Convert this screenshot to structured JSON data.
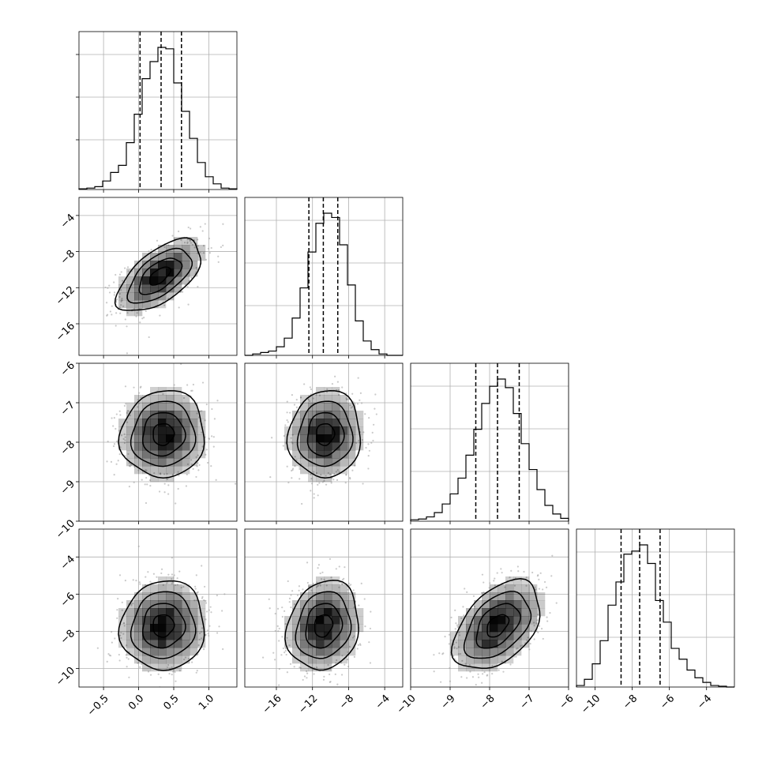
{
  "chart_data": {
    "type": "corner",
    "n_params": 4,
    "grid": true,
    "ranges": [
      [
        -0.85,
        1.4
      ],
      [
        -19.5,
        -2.0
      ],
      [
        -10.0,
        -6.0
      ],
      [
        -11.0,
        -2.5
      ]
    ],
    "ticks": [
      [
        -0.5,
        0.0,
        0.5,
        1.0
      ],
      [
        -16,
        -12,
        -8,
        -4
      ],
      [
        -10,
        -9,
        -8,
        -7,
        -6
      ],
      [
        -10,
        -8,
        -6,
        -4
      ]
    ],
    "tick_labels": [
      [
        "−0.5",
        "0.0",
        "0.5",
        "1.0"
      ],
      [
        "−16",
        "−12",
        "−8",
        "−4"
      ],
      [
        "−10",
        "−9",
        "−8",
        "−7",
        "−6"
      ],
      [
        "−10",
        "−8",
        "−6",
        "−4"
      ]
    ],
    "marginals": [
      {
        "param": 0,
        "quantiles": [
          0.02,
          0.32,
          0.61
        ],
        "bin_start": -0.85,
        "bin_width": 0.1125,
        "counts": [
          0.5,
          1,
          2,
          6,
          12,
          17,
          33,
          53,
          78,
          90,
          100,
          99,
          75,
          55,
          36,
          19,
          9,
          4,
          1,
          0.5
        ]
      },
      {
        "param": 1,
        "quantiles": [
          -12.4,
          -10.8,
          -9.2
        ],
        "bin_start": -19.5,
        "bin_width": 0.875,
        "counts": [
          0,
          1,
          2,
          3,
          6,
          12,
          26,
          47,
          72,
          92,
          99,
          96,
          77,
          49,
          24,
          10,
          4,
          1,
          0,
          0
        ]
      },
      {
        "param": 2,
        "quantiles": [
          -8.35,
          -7.8,
          -7.25
        ],
        "bin_start": -10.0,
        "bin_width": 0.2,
        "counts": [
          1,
          1.5,
          3,
          6,
          12,
          19,
          30,
          46,
          64,
          82,
          94,
          99,
          93,
          75,
          54,
          36,
          22,
          11,
          5,
          2
        ]
      },
      {
        "param": 3,
        "quantiles": [
          -8.6,
          -7.6,
          -6.5
        ],
        "bin_start": -11.0,
        "bin_width": 0.425,
        "counts": [
          1,
          5,
          15,
          30,
          53,
          68,
          86,
          88,
          92,
          80,
          56,
          42,
          25,
          18,
          11,
          6,
          3,
          1,
          0.5,
          0
        ]
      }
    ],
    "joint": [
      {
        "x_param": 0,
        "y_param": 1,
        "mean": [
          0.3,
          -10.7
        ],
        "sd": [
          0.3,
          2.0
        ],
        "rho": 0.6
      },
      {
        "x_param": 0,
        "y_param": 2,
        "mean": [
          0.35,
          -7.8
        ],
        "sd": [
          0.3,
          0.55
        ],
        "rho": 0.05
      },
      {
        "x_param": 1,
        "y_param": 2,
        "mean": [
          -10.6,
          -7.8
        ],
        "sd": [
          2.0,
          0.55
        ],
        "rho": 0.05
      },
      {
        "x_param": 0,
        "y_param": 3,
        "mean": [
          0.35,
          -7.7
        ],
        "sd": [
          0.3,
          1.2
        ],
        "rho": 0.05
      },
      {
        "x_param": 1,
        "y_param": 3,
        "mean": [
          -10.8,
          -7.7
        ],
        "sd": [
          2.0,
          1.2
        ],
        "rho": 0.15
      },
      {
        "x_param": 2,
        "y_param": 3,
        "mean": [
          -7.8,
          -7.7
        ],
        "sd": [
          0.55,
          1.2
        ],
        "rho": 0.45
      }
    ],
    "contour_levels_sigma": [
      0.5,
      1.0,
      1.5,
      2.0
    ]
  },
  "colors": {
    "scatter_points": "#9e9e9e",
    "density_fill": "#000000",
    "lines": "#000000",
    "grid": "#b0b0b0"
  }
}
